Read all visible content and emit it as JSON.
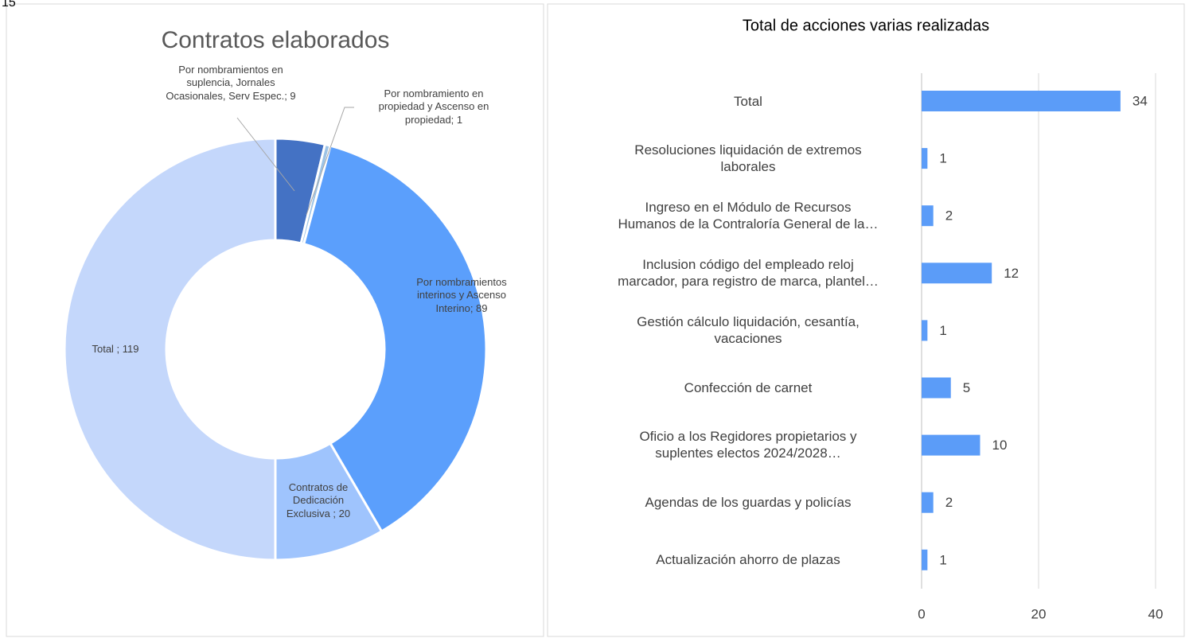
{
  "stray_text": "15",
  "chart_data": [
    {
      "type": "donut",
      "title": "Contratos elaborados",
      "values": [
        9,
        1,
        89,
        20,
        119
      ],
      "value_labels": [
        "Por nombramientos en\nsuplencia,  Jornales\nOcasionales, Serv Espec.; 9",
        "Por nombramiento en\npropiedad y Ascenso en\npropiedad; 1",
        "Por nombramientos\ninterinos y Ascenso\nInterino; 89",
        "Contratos de\nDedicación\nExclusiva ; 20",
        "Total ; 119"
      ],
      "colors": [
        "#4472c4",
        "#9dc3e6",
        "#5b9ffc",
        "#9fc4fd",
        "#c4d7fb"
      ]
    },
    {
      "type": "hbar",
      "title": "Total de acciones varias realizadas",
      "categories": [
        "Total",
        "Resoluciones liquidación de extremos\nlaborales",
        "Ingreso en el Módulo de Recursos\nHumanos de la Contraloría General de la…",
        "Inclusion código del empleado reloj\nmarcador, para registro de marca, plantel…",
        "Gestión cálculo liquidación, cesantía,\nvacaciones",
        "Confección de carnet",
        "Oficio a los Regidores propietarios y\nsuplentes electos 2024/2028…",
        "Agendas de los guardas  y policías",
        "Actualización ahorro de plazas"
      ],
      "values": [
        34,
        1,
        2,
        12,
        1,
        5,
        10,
        2,
        1
      ],
      "color": "#5b9cf8",
      "xlim": [
        0,
        40
      ],
      "xticks": [
        0,
        20,
        40
      ],
      "grid": true
    }
  ]
}
